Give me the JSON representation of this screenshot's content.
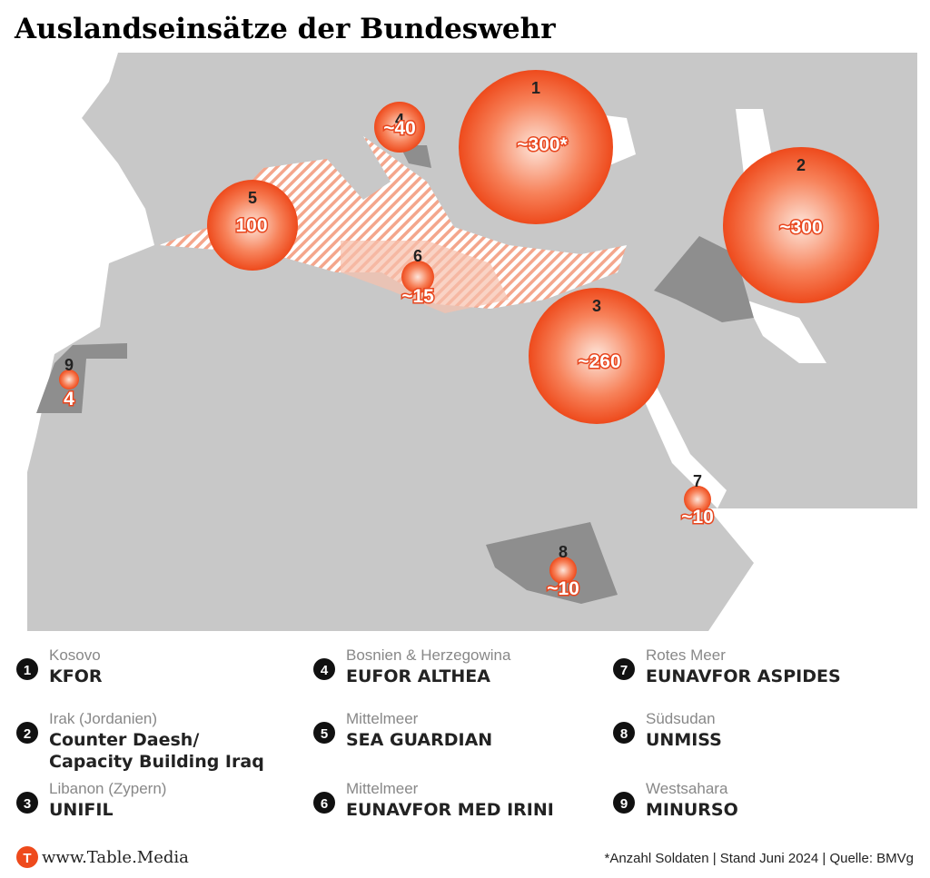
{
  "title": "Auslandseinsätze der Bundeswehr",
  "markers": [
    {
      "id": "1",
      "label": "~300*"
    },
    {
      "id": "2",
      "label": "~300"
    },
    {
      "id": "3",
      "label": "~260"
    },
    {
      "id": "4",
      "label": "~40"
    },
    {
      "id": "5",
      "label": "100"
    },
    {
      "id": "6",
      "label": "~15"
    },
    {
      "id": "7",
      "label": "~10"
    },
    {
      "id": "8",
      "label": "~10"
    },
    {
      "id": "9",
      "label": "4"
    }
  ],
  "legend": [
    {
      "number": "1",
      "region": "Kosovo",
      "mission": [
        "KFOR"
      ]
    },
    {
      "number": "2",
      "region": "Irak (Jordanien)",
      "mission": [
        "Counter Daesh/",
        "Capacity Building Iraq"
      ]
    },
    {
      "number": "3",
      "region": "Libanon (Zypern)",
      "mission": [
        "UNIFIL"
      ]
    },
    {
      "number": "4",
      "region": "Bosnien & Herzegowina",
      "mission": [
        "EUFOR ALTHEA"
      ]
    },
    {
      "number": "5",
      "region": "Mittelmeer",
      "mission": [
        "SEA GUARDIAN"
      ]
    },
    {
      "number": "6",
      "region": "Mittelmeer",
      "mission": [
        "EUNAVFOR MED IRINI"
      ]
    },
    {
      "number": "7",
      "region": "Rotes Meer",
      "mission": [
        "EUNAVFOR ASPIDES"
      ]
    },
    {
      "number": "8",
      "region": "Südsudan",
      "mission": [
        "UNMISS"
      ]
    },
    {
      "number": "9",
      "region": "Westsahara",
      "mission": [
        "MINURSO"
      ]
    }
  ],
  "footer": {
    "logo": "T",
    "brand": "www.Table.Media",
    "note": "*Anzahl Soldaten | Stand Juni 2024 | Quelle: BMVg"
  }
}
